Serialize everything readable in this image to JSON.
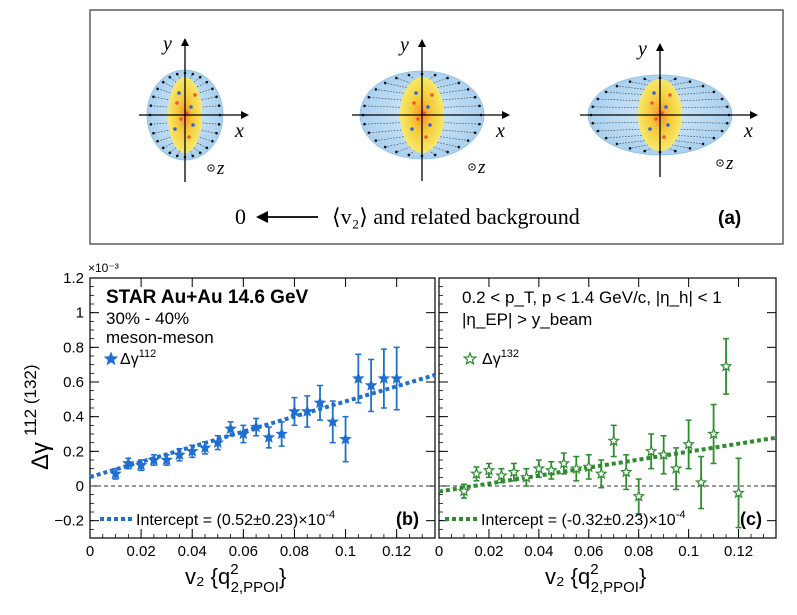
{
  "panel_a": {
    "label": "(a)",
    "axis_x": "x",
    "axis_y": "y",
    "axis_z": "z",
    "zero_label": "0",
    "v2_text": "⟨v₂⟩ and related background"
  },
  "shared": {
    "y_label_main": "Δγ",
    "y_label_super": "112 (132)",
    "y_exponent": "×10⁻³",
    "x_label_main": "v₂ {q",
    "x_label_sup": "2",
    "x_label_sub": "2,PPOI",
    "x_label_close": "}"
  },
  "colors": {
    "blue": "#1f6fd1",
    "green": "#2e8b2e",
    "ellipse_blue": "#b8d8f2",
    "ellipse_yellow": "#f2d23a"
  },
  "chart_data": [
    {
      "type": "scatter",
      "panel": "b",
      "label": "(b)",
      "title": "STAR Au+Au 14.6 GeV",
      "centrality": "30% - 40%",
      "pair_type": "meson-meson",
      "legend": "Δγ",
      "legend_sup": "112",
      "fit_text": "Intercept = (0.52±0.23)×10",
      "fit_exp": "-4",
      "xlim": [
        0,
        0.135
      ],
      "ylim": [
        -0.3,
        1.2
      ],
      "x_ticks": [
        "0",
        "0.02",
        "0.04",
        "0.06",
        "0.08",
        "0.1",
        "0.12"
      ],
      "y_ticks": [
        "−0.2",
        "0",
        "0.2",
        "0.4",
        "0.6",
        "0.8",
        "1",
        "1.2"
      ],
      "fit_line": {
        "intercept": 0.052,
        "slope": 4.36
      },
      "points": [
        [
          0.01,
          0.07,
          0.03
        ],
        [
          0.015,
          0.13,
          0.03
        ],
        [
          0.02,
          0.12,
          0.03
        ],
        [
          0.025,
          0.15,
          0.03
        ],
        [
          0.03,
          0.15,
          0.03
        ],
        [
          0.035,
          0.18,
          0.035
        ],
        [
          0.04,
          0.2,
          0.035
        ],
        [
          0.045,
          0.22,
          0.035
        ],
        [
          0.05,
          0.25,
          0.04
        ],
        [
          0.055,
          0.33,
          0.04
        ],
        [
          0.06,
          0.3,
          0.05
        ],
        [
          0.065,
          0.34,
          0.05
        ],
        [
          0.07,
          0.28,
          0.06
        ],
        [
          0.075,
          0.3,
          0.07
        ],
        [
          0.08,
          0.43,
          0.08
        ],
        [
          0.085,
          0.43,
          0.09
        ],
        [
          0.09,
          0.48,
          0.1
        ],
        [
          0.095,
          0.37,
          0.12
        ],
        [
          0.1,
          0.27,
          0.13
        ],
        [
          0.105,
          0.62,
          0.14
        ],
        [
          0.11,
          0.58,
          0.15
        ],
        [
          0.115,
          0.62,
          0.17
        ],
        [
          0.12,
          0.62,
          0.18
        ]
      ]
    },
    {
      "type": "scatter",
      "panel": "c",
      "label": "(c)",
      "kinematics_line1": "0.2 < p_T, p < 1.4 GeV/c, |η_h| < 1",
      "kinematics_line2": "|η_EP| > y_beam",
      "legend": "Δγ",
      "legend_sup": "132",
      "fit_text": "Intercept = (-0.32±0.23)×10",
      "fit_exp": "-4",
      "xlim": [
        0,
        0.135
      ],
      "ylim": [
        -0.3,
        1.2
      ],
      "x_ticks": [
        "0",
        "0.02",
        "0.04",
        "0.06",
        "0.08",
        "0.1",
        "0.12"
      ],
      "fit_line": {
        "intercept": -0.032,
        "slope": 2.3
      },
      "points": [
        [
          0.01,
          -0.03,
          0.04
        ],
        [
          0.015,
          0.07,
          0.04
        ],
        [
          0.02,
          0.09,
          0.04
        ],
        [
          0.025,
          0.06,
          0.04
        ],
        [
          0.03,
          0.08,
          0.05
        ],
        [
          0.035,
          0.05,
          0.05
        ],
        [
          0.04,
          0.1,
          0.05
        ],
        [
          0.045,
          0.09,
          0.05
        ],
        [
          0.05,
          0.13,
          0.06
        ],
        [
          0.055,
          0.1,
          0.07
        ],
        [
          0.06,
          0.11,
          0.07
        ],
        [
          0.065,
          0.07,
          0.08
        ],
        [
          0.07,
          0.26,
          0.09
        ],
        [
          0.075,
          0.08,
          0.1
        ],
        [
          0.08,
          -0.06,
          0.1
        ],
        [
          0.085,
          0.2,
          0.1
        ],
        [
          0.09,
          0.18,
          0.11
        ],
        [
          0.095,
          0.1,
          0.12
        ],
        [
          0.1,
          0.24,
          0.14
        ],
        [
          0.105,
          0.02,
          0.15
        ],
        [
          0.11,
          0.3,
          0.17
        ],
        [
          0.115,
          0.69,
          0.16
        ],
        [
          0.12,
          -0.04,
          0.2
        ]
      ]
    }
  ]
}
